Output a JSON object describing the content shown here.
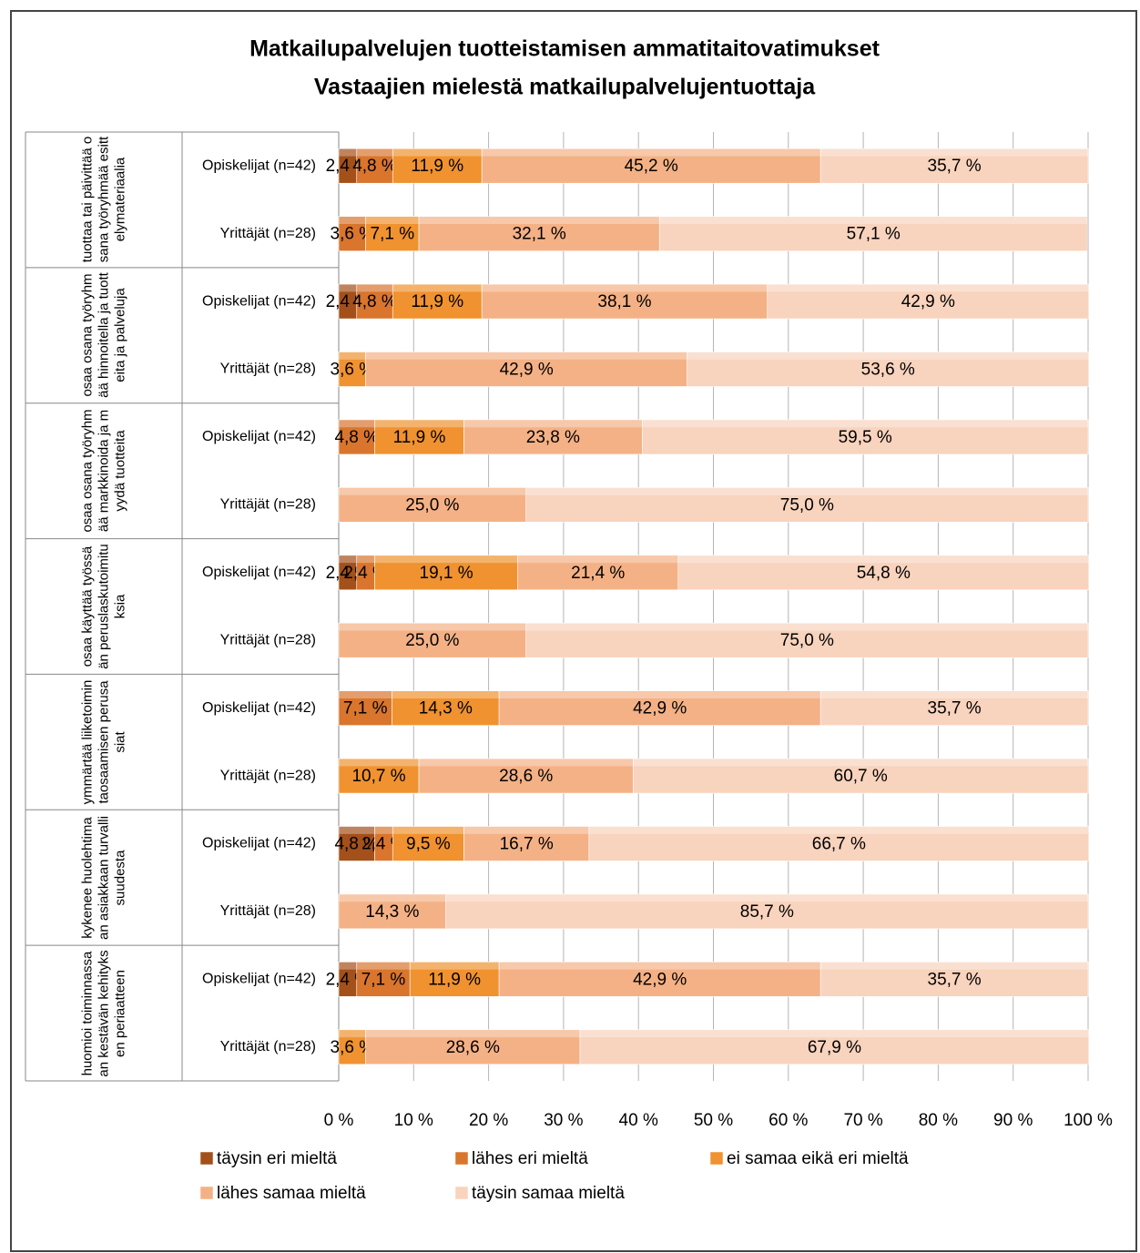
{
  "chart_data": {
    "type": "bar",
    "orientation": "horizontal",
    "stacked": true,
    "title": "Matkailupalvelujen tuotteistamisen ammatitaitovatimukset",
    "subtitle": "Vastaajien mielestä matkailupalvelujentuottaja",
    "groups": [
      "tuottaa tai päivittää osana työryhmää esittelymateriaalia",
      "osaa osana työryhmää hinnoitella ja tuotteita ja palveluja",
      "osaa osana työryhmää markkinoida ja myydä tuotteita",
      "osaa käyttää työssään peruslaskutoimituksia",
      "ymmärtää liiketoimintaosaamisen perusasiat",
      "kykenee huolehtimaan asiakkaan turvallisuudesta",
      "huomioi toiminnassaan kestävän kehityksen periaatteen"
    ],
    "categories": [
      "Opiskelijat (n=42)",
      "Yrittäjät (n=28)",
      "Opiskelijat (n=42)",
      "Yrittäjät (n=28)",
      "Opiskelijat (n=42)",
      "Yrittäjät (n=28)",
      "Opiskelijat (n=42)",
      "Yrittäjät (n=28)",
      "Opiskelijat (n=42)",
      "Yrittäjät (n=28)",
      "Opiskelijat (n=42)",
      "Yrittäjät (n=28)",
      "Opiskelijat (n=42)",
      "Yrittäjät (n=28)"
    ],
    "series": [
      {
        "name": "täysin eri mieltä",
        "color": "#a4501a",
        "values": [
          2.4,
          null,
          2.4,
          null,
          null,
          null,
          2.4,
          null,
          null,
          null,
          4.8,
          null,
          2.4,
          null
        ],
        "value_labels": [
          "2,4 %",
          null,
          "2,4 %",
          null,
          null,
          null,
          "2,4 %",
          null,
          null,
          null,
          "4,8 %",
          null,
          "2,4 %",
          null
        ]
      },
      {
        "name": "lähes eri mieltä",
        "color": "#d9752d",
        "values": [
          4.8,
          3.6,
          4.8,
          null,
          4.8,
          null,
          2.4,
          null,
          7.1,
          null,
          2.4,
          null,
          7.1,
          null
        ],
        "value_labels": [
          "4,8 %",
          "3,6 %",
          "4,8 %",
          null,
          "4,8 %",
          null,
          "2,4 %",
          null,
          "7,1 %",
          null,
          "2,4 %",
          null,
          "7,1 %",
          null
        ]
      },
      {
        "name": "ei samaa eikä eri mieltä",
        "color": "#f0922f",
        "values": [
          11.9,
          7.1,
          11.9,
          3.6,
          11.9,
          null,
          19.1,
          null,
          14.3,
          10.7,
          9.5,
          null,
          11.9,
          3.6
        ],
        "value_labels": [
          "11,9 %",
          "7,1 %",
          "11,9 %",
          "3,6 %",
          "11,9 %",
          null,
          "19,1 %",
          null,
          "14,3 %",
          "10,7 %",
          "9,5 %",
          null,
          "11,9 %",
          "3,6 %"
        ]
      },
      {
        "name": "lähes samaa mieltä",
        "color": "#f4b185",
        "values": [
          45.2,
          32.1,
          38.1,
          42.9,
          23.8,
          25.0,
          21.4,
          25.0,
          42.9,
          28.6,
          16.7,
          14.3,
          42.9,
          28.6
        ],
        "value_labels": [
          "45,2 %",
          "32,1 %",
          "38,1 %",
          "42,9 %",
          "23,8 %",
          "25,0 %",
          "21,4 %",
          "25,0 %",
          "42,9 %",
          "28,6 %",
          "16,7 %",
          "14,3 %",
          "42,9 %",
          "28,6 %"
        ]
      },
      {
        "name": "täysin samaa mieltä",
        "color": "#f8d3bd",
        "values": [
          35.7,
          57.1,
          42.9,
          53.6,
          59.5,
          75.0,
          54.8,
          75.0,
          35.7,
          60.7,
          66.7,
          85.7,
          35.7,
          67.9
        ],
        "value_labels": [
          "35,7 %",
          "57,1 %",
          "42,9 %",
          "53,6 %",
          "59,5 %",
          "75,0 %",
          "54,8 %",
          "75,0 %",
          "35,7 %",
          "60,7 %",
          "66,7 %",
          "85,7 %",
          "35,7 %",
          "67,9 %"
        ]
      }
    ],
    "xlim": [
      0,
      100
    ],
    "xticks": [
      {
        "value": 0,
        "label": "0 %"
      },
      {
        "value": 10,
        "label": "10 %"
      },
      {
        "value": 20,
        "label": "20 %"
      },
      {
        "value": 30,
        "label": "30 %"
      },
      {
        "value": 40,
        "label": "40 %"
      },
      {
        "value": 50,
        "label": "50 %"
      },
      {
        "value": 60,
        "label": "60 %"
      },
      {
        "value": 70,
        "label": "70 %"
      },
      {
        "value": 80,
        "label": "80 %"
      },
      {
        "value": 90,
        "label": "90 %"
      },
      {
        "value": 100,
        "label": "100 %"
      }
    ],
    "grid": true,
    "legend": "bottom"
  }
}
